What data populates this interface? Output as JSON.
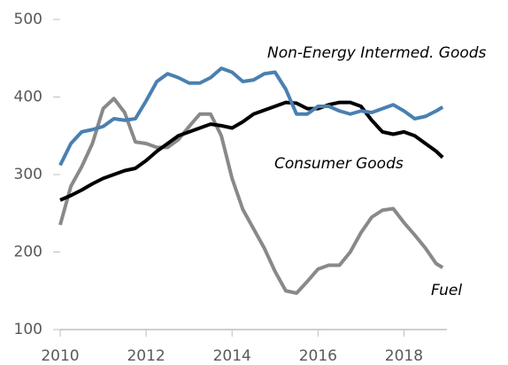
{
  "chart_data": {
    "type": "line",
    "x": [
      2010,
      2010.25,
      2010.5,
      2010.75,
      2011,
      2011.25,
      2011.5,
      2011.75,
      2012,
      2012.25,
      2012.5,
      2012.75,
      2013,
      2013.25,
      2013.5,
      2013.75,
      2014,
      2014.25,
      2014.5,
      2014.75,
      2015,
      2015.25,
      2015.5,
      2015.75,
      2016,
      2016.25,
      2016.5,
      2016.75,
      2017,
      2017.25,
      2017.5,
      2017.75,
      2018,
      2018.25,
      2018.5,
      2018.75,
      2018.9
    ],
    "series": [
      {
        "name": "Non-Energy Intermed. Goods",
        "color": "#4a80b0",
        "values": [
          312,
          340,
          355,
          358,
          362,
          372,
          370,
          372,
          395,
          420,
          430,
          425,
          418,
          418,
          425,
          437,
          432,
          420,
          422,
          430,
          432,
          410,
          378,
          378,
          388,
          388,
          382,
          378,
          382,
          380,
          385,
          390,
          382,
          372,
          375,
          382,
          387
        ]
      },
      {
        "name": "Consumer Goods",
        "color": "#000000",
        "values": [
          267,
          273,
          280,
          288,
          295,
          300,
          305,
          308,
          318,
          330,
          340,
          350,
          355,
          360,
          365,
          363,
          360,
          368,
          378,
          383,
          388,
          393,
          392,
          385,
          385,
          390,
          393,
          393,
          388,
          370,
          355,
          352,
          355,
          350,
          340,
          330,
          322
        ]
      },
      {
        "name": "Fuel",
        "color": "#898989",
        "values": [
          235,
          285,
          310,
          340,
          385,
          398,
          380,
          342,
          340,
          335,
          335,
          345,
          362,
          378,
          378,
          350,
          295,
          255,
          230,
          205,
          175,
          150,
          147,
          162,
          178,
          183,
          183,
          200,
          225,
          245,
          254,
          256,
          238,
          222,
          205,
          185,
          180
        ]
      }
    ],
    "xlim": [
      2010,
      2019
    ],
    "xticks": [
      2010,
      2012,
      2014,
      2016,
      2018
    ],
    "ylim": [
      100,
      500
    ],
    "yticks": [
      100,
      200,
      300,
      400,
      500
    ]
  }
}
